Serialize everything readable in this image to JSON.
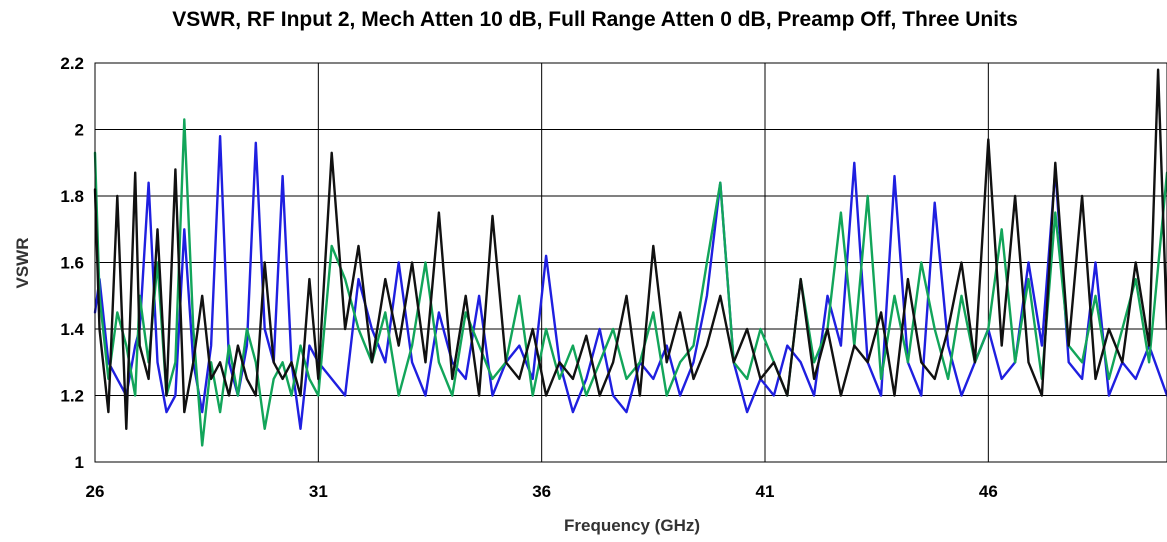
{
  "chart_data": {
    "type": "line",
    "title": "VSWR, RF Input 2, Mech Atten 10 dB, Full Range Atten 0 dB, Preamp Off, Three Units",
    "xlabel": "Frequency (GHz)",
    "ylabel": "VSWR",
    "xlim": [
      26,
      50
    ],
    "ylim": [
      1,
      2.2
    ],
    "xticks": [
      "26",
      "31",
      "36",
      "41",
      "46"
    ],
    "xtick_values": [
      26,
      31,
      36,
      41,
      46
    ],
    "yticks": [
      "1",
      "1.2",
      "1.4",
      "1.6",
      "1.8",
      "2",
      "2.2"
    ],
    "ytick_values": [
      1,
      1.2,
      1.4,
      1.6,
      1.8,
      2,
      2.2
    ],
    "grid": true,
    "legend": "none",
    "series": [
      {
        "color": "#1f1fe0",
        "x": [
          26,
          26.1,
          26.3,
          26.5,
          26.7,
          26.9,
          27,
          27.2,
          27.4,
          27.6,
          27.8,
          28,
          28.2,
          28.4,
          28.6,
          28.8,
          29,
          29.2,
          29.4,
          29.6,
          29.8,
          30,
          30.2,
          30.4,
          30.6,
          30.8,
          31,
          31.3,
          31.6,
          31.9,
          32.2,
          32.5,
          32.8,
          33.1,
          33.4,
          33.7,
          34,
          34.3,
          34.6,
          34.9,
          35.2,
          35.5,
          35.8,
          36.1,
          36.4,
          36.7,
          37,
          37.3,
          37.6,
          37.9,
          38.2,
          38.5,
          38.8,
          39.1,
          39.4,
          39.7,
          40,
          40.3,
          40.6,
          40.9,
          41.2,
          41.5,
          41.8,
          42.1,
          42.4,
          42.7,
          43,
          43.3,
          43.6,
          43.9,
          44.2,
          44.5,
          44.8,
          45.1,
          45.4,
          45.7,
          46,
          46.3,
          46.6,
          46.9,
          47.2,
          47.5,
          47.8,
          48.1,
          48.4,
          48.7,
          49,
          49.3,
          49.6,
          50
        ],
        "y": [
          1.45,
          1.55,
          1.3,
          1.25,
          1.2,
          1.35,
          1.4,
          1.84,
          1.3,
          1.15,
          1.2,
          1.7,
          1.3,
          1.15,
          1.35,
          1.98,
          1.3,
          1.2,
          1.35,
          1.96,
          1.4,
          1.3,
          1.86,
          1.3,
          1.1,
          1.35,
          1.3,
          1.25,
          1.2,
          1.55,
          1.4,
          1.3,
          1.6,
          1.3,
          1.2,
          1.45,
          1.3,
          1.25,
          1.5,
          1.2,
          1.3,
          1.35,
          1.25,
          1.62,
          1.3,
          1.15,
          1.25,
          1.4,
          1.2,
          1.15,
          1.3,
          1.25,
          1.35,
          1.2,
          1.3,
          1.5,
          1.84,
          1.3,
          1.15,
          1.25,
          1.2,
          1.35,
          1.3,
          1.2,
          1.5,
          1.35,
          1.9,
          1.3,
          1.2,
          1.86,
          1.3,
          1.2,
          1.78,
          1.35,
          1.2,
          1.3,
          1.4,
          1.25,
          1.3,
          1.6,
          1.35,
          1.88,
          1.3,
          1.25,
          1.6,
          1.2,
          1.3,
          1.25,
          1.35,
          1.2
        ]
      },
      {
        "color": "#12a55a",
        "x": [
          26,
          26.1,
          26.3,
          26.5,
          26.7,
          26.9,
          27,
          27.2,
          27.4,
          27.6,
          27.8,
          28,
          28.2,
          28.4,
          28.6,
          28.8,
          29,
          29.2,
          29.4,
          29.6,
          29.8,
          30,
          30.2,
          30.4,
          30.6,
          30.8,
          31,
          31.3,
          31.6,
          31.9,
          32.2,
          32.5,
          32.8,
          33.1,
          33.4,
          33.7,
          34,
          34.3,
          34.6,
          34.9,
          35.2,
          35.5,
          35.8,
          36.1,
          36.4,
          36.7,
          37,
          37.3,
          37.6,
          37.9,
          38.2,
          38.5,
          38.8,
          39.1,
          39.4,
          39.7,
          40,
          40.3,
          40.6,
          40.9,
          41.2,
          41.5,
          41.8,
          42.1,
          42.4,
          42.7,
          43,
          43.3,
          43.6,
          43.9,
          44.2,
          44.5,
          44.8,
          45.1,
          45.4,
          45.7,
          46,
          46.3,
          46.6,
          46.9,
          47.2,
          47.5,
          47.8,
          48.1,
          48.4,
          48.7,
          49,
          49.3,
          49.6,
          50
        ],
        "y": [
          1.93,
          1.5,
          1.25,
          1.45,
          1.35,
          1.2,
          1.5,
          1.3,
          1.6,
          1.2,
          1.3,
          2.03,
          1.4,
          1.05,
          1.3,
          1.15,
          1.35,
          1.2,
          1.4,
          1.3,
          1.1,
          1.25,
          1.3,
          1.2,
          1.35,
          1.25,
          1.2,
          1.65,
          1.55,
          1.4,
          1.3,
          1.45,
          1.2,
          1.35,
          1.6,
          1.3,
          1.2,
          1.45,
          1.35,
          1.25,
          1.3,
          1.5,
          1.2,
          1.4,
          1.25,
          1.35,
          1.2,
          1.3,
          1.4,
          1.25,
          1.3,
          1.45,
          1.2,
          1.3,
          1.35,
          1.6,
          1.84,
          1.3,
          1.25,
          1.4,
          1.3,
          1.2,
          1.55,
          1.3,
          1.4,
          1.75,
          1.35,
          1.8,
          1.25,
          1.5,
          1.3,
          1.6,
          1.4,
          1.25,
          1.5,
          1.3,
          1.4,
          1.7,
          1.3,
          1.55,
          1.25,
          1.75,
          1.35,
          1.3,
          1.5,
          1.25,
          1.4,
          1.55,
          1.3,
          1.87
        ]
      },
      {
        "color": "#111111",
        "x": [
          26,
          26.1,
          26.3,
          26.5,
          26.7,
          26.9,
          27,
          27.2,
          27.4,
          27.6,
          27.8,
          28,
          28.2,
          28.4,
          28.6,
          28.8,
          29,
          29.2,
          29.4,
          29.6,
          29.8,
          30,
          30.2,
          30.4,
          30.6,
          30.8,
          31,
          31.3,
          31.6,
          31.9,
          32.2,
          32.5,
          32.8,
          33.1,
          33.4,
          33.7,
          34,
          34.3,
          34.6,
          34.9,
          35.2,
          35.5,
          35.8,
          36.1,
          36.4,
          36.7,
          37,
          37.3,
          37.6,
          37.9,
          38.2,
          38.5,
          38.8,
          39.1,
          39.4,
          39.7,
          40,
          40.3,
          40.6,
          40.9,
          41.2,
          41.5,
          41.8,
          42.1,
          42.4,
          42.7,
          43,
          43.3,
          43.6,
          43.9,
          44.2,
          44.5,
          44.8,
          45.1,
          45.4,
          45.7,
          46,
          46.3,
          46.6,
          46.9,
          47.2,
          47.5,
          47.8,
          48.1,
          48.4,
          48.7,
          49,
          49.3,
          49.6,
          49.8,
          50
        ],
        "y": [
          1.82,
          1.4,
          1.15,
          1.8,
          1.1,
          1.87,
          1.35,
          1.25,
          1.7,
          1.2,
          1.88,
          1.15,
          1.3,
          1.5,
          1.25,
          1.3,
          1.2,
          1.35,
          1.25,
          1.2,
          1.6,
          1.3,
          1.25,
          1.3,
          1.2,
          1.55,
          1.25,
          1.93,
          1.4,
          1.65,
          1.3,
          1.55,
          1.35,
          1.6,
          1.3,
          1.75,
          1.25,
          1.5,
          1.2,
          1.74,
          1.3,
          1.25,
          1.4,
          1.2,
          1.3,
          1.25,
          1.38,
          1.2,
          1.3,
          1.5,
          1.2,
          1.65,
          1.3,
          1.45,
          1.25,
          1.35,
          1.5,
          1.3,
          1.4,
          1.25,
          1.3,
          1.2,
          1.55,
          1.25,
          1.4,
          1.2,
          1.35,
          1.3,
          1.45,
          1.2,
          1.55,
          1.3,
          1.25,
          1.4,
          1.6,
          1.3,
          1.97,
          1.35,
          1.8,
          1.3,
          1.2,
          1.9,
          1.35,
          1.8,
          1.25,
          1.4,
          1.3,
          1.6,
          1.35,
          2.18,
          1.4
        ]
      }
    ]
  }
}
